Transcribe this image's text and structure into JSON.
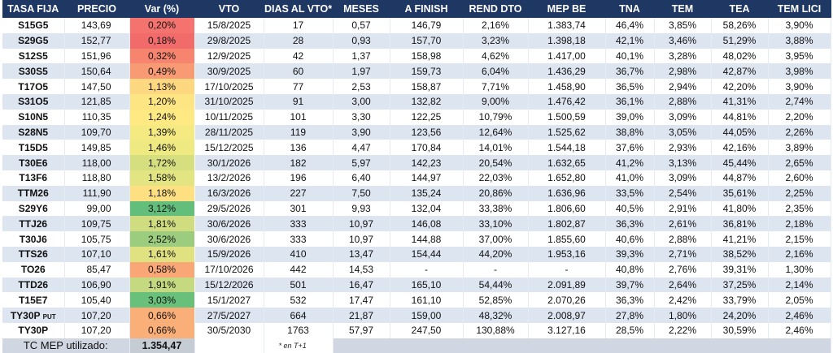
{
  "columns": [
    "TASA FIJA",
    "PRECIO",
    "Var (%)",
    "VTO",
    "DIAS AL VTO*",
    "MESES",
    "A FINISH",
    "REND DTO",
    "MEP BE",
    "TNA",
    "TEM",
    "TEA",
    "TEM LICI"
  ],
  "rows": [
    {
      "ticker": "S15G5",
      "precio": "143,69",
      "var": "0,20%",
      "var_color": "#f4736e",
      "vto": "15/8/2025",
      "dias": "17",
      "meses": "0,57",
      "a_finish": "146,79",
      "rend_dto": "2,16%",
      "mep_be": "1.383,74",
      "tna": "46,4%",
      "tem": "3,85%",
      "tea": "58,26%",
      "tem_lici": "3,90%"
    },
    {
      "ticker": "S29G5",
      "precio": "152,77",
      "var": "0,18%",
      "var_color": "#f26b6b",
      "vto": "29/8/2025",
      "dias": "28",
      "meses": "0,93",
      "a_finish": "157,70",
      "rend_dto": "3,23%",
      "mep_be": "1.398,18",
      "tna": "42,1%",
      "tem": "3,46%",
      "tea": "51,29%",
      "tem_lici": "3,88%"
    },
    {
      "ticker": "S12S5",
      "precio": "151,96",
      "var": "0,32%",
      "var_color": "#f6846f",
      "vto": "12/9/2025",
      "dias": "42",
      "meses": "1,37",
      "a_finish": "158,98",
      "rend_dto": "4,62%",
      "mep_be": "1.417,00",
      "tna": "40,1%",
      "tem": "3,28%",
      "tea": "48,02%",
      "tem_lici": "3,95%"
    },
    {
      "ticker": "S30S5",
      "precio": "150,64",
      "var": "0,49%",
      "var_color": "#f89a74",
      "vto": "30/9/2025",
      "dias": "60",
      "meses": "1,97",
      "a_finish": "159,73",
      "rend_dto": "6,04%",
      "mep_be": "1.436,29",
      "tna": "36,7%",
      "tem": "2,98%",
      "tea": "42,87%",
      "tem_lici": "3,98%"
    },
    {
      "ticker": "T17O5",
      "precio": "147,50",
      "var": "1,13%",
      "var_color": "#fdd880",
      "vto": "17/10/2025",
      "dias": "77",
      "meses": "2,53",
      "a_finish": "158,87",
      "rend_dto": "7,71%",
      "mep_be": "1.458,90",
      "tna": "36,5%",
      "tem": "2,94%",
      "tea": "42,20%",
      "tem_lici": "3,90%"
    },
    {
      "ticker": "S31O5",
      "precio": "121,85",
      "var": "1,20%",
      "var_color": "#fee584",
      "vto": "31/10/2025",
      "dias": "91",
      "meses": "3,00",
      "a_finish": "132,82",
      "rend_dto": "9,00%",
      "mep_be": "1.476,42",
      "tna": "36,1%",
      "tem": "2,88%",
      "tea": "41,31%",
      "tem_lici": "2,74%"
    },
    {
      "ticker": "S10N5",
      "precio": "110,35",
      "var": "1,24%",
      "var_color": "#fee983",
      "vto": "10/11/2025",
      "dias": "101",
      "meses": "3,30",
      "a_finish": "122,25",
      "rend_dto": "10,79%",
      "mep_be": "1.500,59",
      "tna": "39,0%",
      "tem": "3,09%",
      "tea": "44,81%",
      "tem_lici": "2,20%"
    },
    {
      "ticker": "S28N5",
      "precio": "109,70",
      "var": "1,39%",
      "var_color": "#f5e982",
      "vto": "28/11/2025",
      "dias": "119",
      "meses": "3,90",
      "a_finish": "123,56",
      "rend_dto": "12,64%",
      "mep_be": "1.525,62",
      "tna": "38,8%",
      "tem": "3,05%",
      "tea": "44,05%",
      "tem_lici": "2,26%"
    },
    {
      "ticker": "T15D5",
      "precio": "149,85",
      "var": "1,46%",
      "var_color": "#eee981",
      "vto": "15/12/2025",
      "dias": "136",
      "meses": "4,47",
      "a_finish": "170,84",
      "rend_dto": "14,01%",
      "mep_be": "1.544,18",
      "tna": "37,6%",
      "tem": "2,93%",
      "tea": "42,16%",
      "tem_lici": "3,89%"
    },
    {
      "ticker": "T30E6",
      "precio": "118,00",
      "var": "1,72%",
      "var_color": "#d6df80",
      "vto": "30/1/2026",
      "dias": "182",
      "meses": "5,97",
      "a_finish": "142,23",
      "rend_dto": "20,54%",
      "mep_be": "1.632,65",
      "tna": "41,2%",
      "tem": "3,13%",
      "tea": "45,44%",
      "tem_lici": "2,65%"
    },
    {
      "ticker": "T13F6",
      "precio": "118,80",
      "var": "1,58%",
      "var_color": "#e3e482",
      "vto": "13/2/2026",
      "dias": "196",
      "meses": "6,40",
      "a_finish": "144,97",
      "rend_dto": "22,03%",
      "mep_be": "1.652,80",
      "tna": "41,0%",
      "tem": "3,09%",
      "tea": "44,87%",
      "tem_lici": "2,60%"
    },
    {
      "ticker": "TTM26",
      "precio": "111,90",
      "var": "1,18%",
      "var_color": "#fee083",
      "vto": "16/3/2026",
      "dias": "227",
      "meses": "7,50",
      "a_finish": "135,24",
      "rend_dto": "20,86%",
      "mep_be": "1.636,96",
      "tna": "33,5%",
      "tem": "2,54%",
      "tea": "35,61%",
      "tem_lici": "2,25%"
    },
    {
      "ticker": "S29Y6",
      "precio": "99,00",
      "var": "3,12%",
      "var_color": "#63be7b",
      "vto": "29/5/2026",
      "dias": "301",
      "meses": "9,93",
      "a_finish": "132,04",
      "rend_dto": "33,38%",
      "mep_be": "1.806,60",
      "tna": "40,5%",
      "tem": "2,91%",
      "tea": "41,80%",
      "tem_lici": "2,35%"
    },
    {
      "ticker": "TTJ26",
      "precio": "109,75",
      "var": "1,81%",
      "var_color": "#cfdc80",
      "vto": "30/6/2026",
      "dias": "333",
      "meses": "10,97",
      "a_finish": "146,08",
      "rend_dto": "33,10%",
      "mep_be": "1.802,87",
      "tna": "36,3%",
      "tem": "2,61%",
      "tea": "36,81%",
      "tem_lici": "2,18%"
    },
    {
      "ticker": "T30J6",
      "precio": "105,75",
      "var": "2,52%",
      "var_color": "#9ccd7e",
      "vto": "30/6/2026",
      "dias": "333",
      "meses": "10,97",
      "a_finish": "144,88",
      "rend_dto": "37,00%",
      "mep_be": "1.855,60",
      "tna": "40,6%",
      "tem": "2,88%",
      "tea": "41,21%",
      "tem_lici": "2,15%"
    },
    {
      "ticker": "TTS26",
      "precio": "107,10",
      "var": "1,61%",
      "var_color": "#e0e282",
      "vto": "15/9/2026",
      "dias": "410",
      "meses": "13,47",
      "a_finish": "154,44",
      "rend_dto": "44,20%",
      "mep_be": "1.953,16",
      "tna": "39,3%",
      "tem": "2,71%",
      "tea": "38,52%",
      "tem_lici": "2,16%"
    },
    {
      "ticker": "TO26",
      "precio": "85,47",
      "var": "0,58%",
      "var_color": "#f9a777",
      "vto": "17/10/2026",
      "dias": "442",
      "meses": "14,53",
      "a_finish": "-",
      "rend_dto": "-",
      "mep_be": "-",
      "tna": "40,8%",
      "tem": "2,76%",
      "tea": "39,31%",
      "tem_lici": "1,30%"
    },
    {
      "ticker": "TTD26",
      "precio": "106,90",
      "var": "1,91%",
      "var_color": "#c5d980",
      "vto": "15/12/2026",
      "dias": "501",
      "meses": "16,47",
      "a_finish": "165,10",
      "rend_dto": "54,44%",
      "mep_be": "2.091,89",
      "tna": "39,7%",
      "tem": "2,64%",
      "tea": "37,25%",
      "tem_lici": "2,14%"
    },
    {
      "ticker": "T15E7",
      "precio": "105,40",
      "var": "3,03%",
      "var_color": "#68c07b",
      "vto": "15/1/2027",
      "dias": "532",
      "meses": "17,47",
      "a_finish": "161,10",
      "rend_dto": "52,85%",
      "mep_be": "2.070,26",
      "tna": "36,3%",
      "tem": "2,42%",
      "tea": "33,79%",
      "tem_lici": "2,05%"
    },
    {
      "ticker": "TY30P",
      "ticker_sub": "PUT",
      "precio": "107,20",
      "var": "0,66%",
      "var_color": "#faae78",
      "vto": "27/5/2027",
      "dias": "664",
      "meses": "21,87",
      "a_finish": "159,00",
      "rend_dto": "48,32%",
      "mep_be": "2.008,97",
      "tna": "27,8%",
      "tem": "1,80%",
      "tea": "24,20%",
      "tem_lici": "2,46%"
    },
    {
      "ticker": "TY30P",
      "precio": "107,20",
      "var": "0,66%",
      "var_color": "#faae78",
      "vto": "30/5/2030",
      "dias": "1763",
      "meses": "57,97",
      "a_finish": "247,50",
      "rend_dto": "130,88%",
      "mep_be": "3.127,16",
      "tna": "28,5%",
      "tem": "2,22%",
      "tea": "30,59%",
      "tem_lici": "2,46%"
    }
  ],
  "footer": {
    "label": "TC MEP utilizado:",
    "value": "1.354,47",
    "note": "* en T+1"
  },
  "colors": {
    "header_bg": "#1f3763",
    "header_text": "#ffffff",
    "stripe": "#dde5f1",
    "footer_bg": "#d0d7e2"
  }
}
